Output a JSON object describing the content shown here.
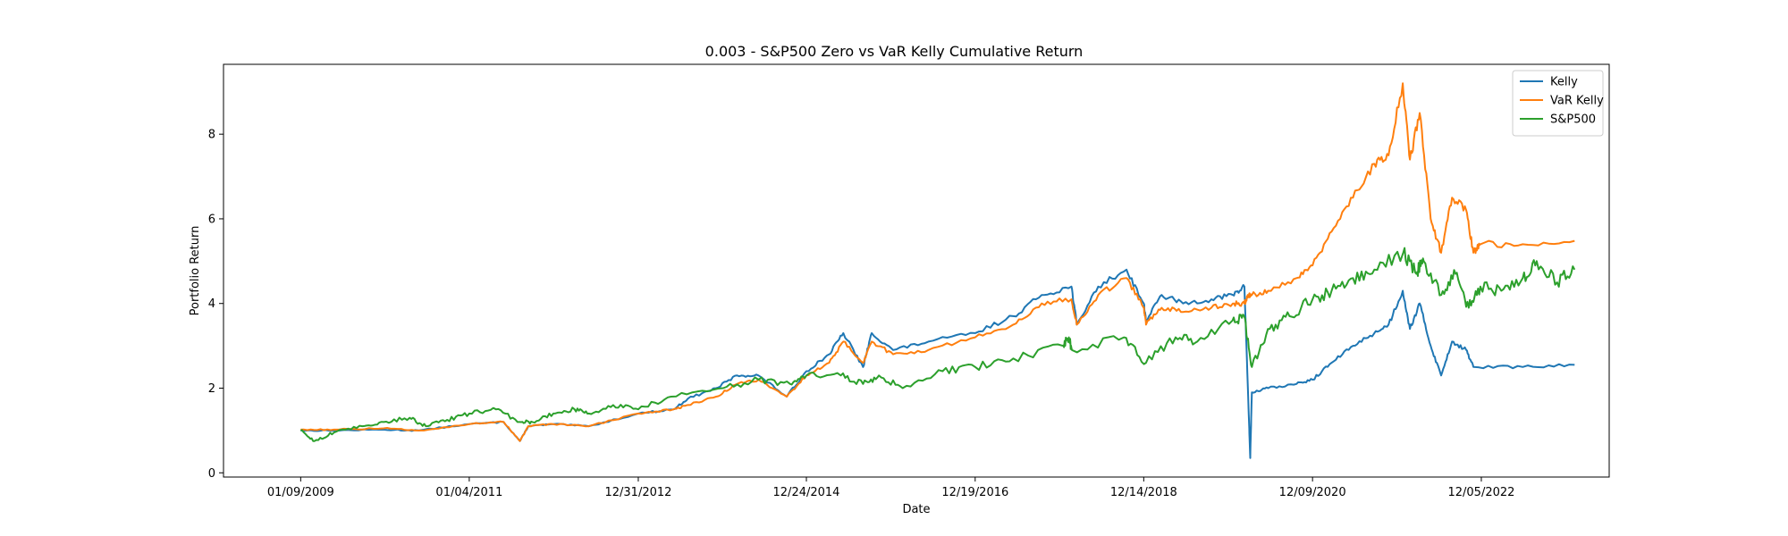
{
  "chart_data": {
    "type": "line",
    "title": "0.003 - S&P500 Zero vs VaR Kelly Cumulative Return",
    "xlabel": "Date",
    "ylabel": "Portfolio Return",
    "x_tick_labels": [
      "01/09/2009",
      "01/04/2011",
      "12/31/2012",
      "12/24/2014",
      "12/19/2016",
      "12/14/2018",
      "12/09/2020",
      "12/05/2022"
    ],
    "x_ticks": [
      "2009-01-09",
      "2011-01-04",
      "2012-12-31",
      "2014-12-24",
      "2016-12-19",
      "2018-12-14",
      "2020-12-09",
      "2022-12-05"
    ],
    "y_ticks": [
      0,
      2,
      4,
      6,
      8
    ],
    "xlim": [
      "2008-02-12",
      "2024-06-07"
    ],
    "ylim": [
      -0.1,
      9.65
    ],
    "grid": false,
    "legend_position": "top-right",
    "series": [
      {
        "name": "Kelly",
        "color": "#1f77b4",
        "points": [
          [
            "2009-01-09",
            1.0
          ],
          [
            "2009-06-01",
            1.0
          ],
          [
            "2010-01-01",
            1.02
          ],
          [
            "2010-06-01",
            1.0
          ],
          [
            "2011-01-04",
            1.15
          ],
          [
            "2011-06-01",
            1.2
          ],
          [
            "2011-08-10",
            0.75
          ],
          [
            "2011-09-15",
            1.1
          ],
          [
            "2012-01-01",
            1.15
          ],
          [
            "2012-06-01",
            1.1
          ],
          [
            "2012-12-31",
            1.4
          ],
          [
            "2013-06-01",
            1.5
          ],
          [
            "2013-08-01",
            1.75
          ],
          [
            "2013-12-01",
            2.0
          ],
          [
            "2014-03-01",
            2.3
          ],
          [
            "2014-06-01",
            2.3
          ],
          [
            "2014-10-01",
            1.8
          ],
          [
            "2014-12-24",
            2.4
          ],
          [
            "2015-04-01",
            2.8
          ],
          [
            "2015-06-01",
            3.3
          ],
          [
            "2015-08-25",
            2.5
          ],
          [
            "2015-10-01",
            3.3
          ],
          [
            "2016-01-01",
            2.9
          ],
          [
            "2016-06-01",
            3.1
          ],
          [
            "2016-12-19",
            3.3
          ],
          [
            "2017-06-01",
            3.7
          ],
          [
            "2017-10-01",
            4.2
          ],
          [
            "2018-02-06",
            4.4
          ],
          [
            "2018-03-01",
            3.5
          ],
          [
            "2018-06-01",
            4.4
          ],
          [
            "2018-10-01",
            4.8
          ],
          [
            "2018-12-14",
            4.0
          ],
          [
            "2018-12-24",
            3.6
          ],
          [
            "2019-03-01",
            4.2
          ],
          [
            "2019-06-01",
            4.0
          ],
          [
            "2019-10-01",
            4.1
          ],
          [
            "2020-01-01",
            4.2
          ],
          [
            "2020-02-20",
            4.4
          ],
          [
            "2020-03-09",
            1.5
          ],
          [
            "2020-03-16",
            0.35
          ],
          [
            "2020-03-23",
            1.9
          ],
          [
            "2020-06-01",
            2.0
          ],
          [
            "2020-10-01",
            2.1
          ],
          [
            "2020-12-09",
            2.2
          ],
          [
            "2021-03-01",
            2.6
          ],
          [
            "2021-06-01",
            3.0
          ],
          [
            "2021-09-01",
            3.3
          ],
          [
            "2021-11-01",
            3.5
          ],
          [
            "2022-01-01",
            4.3
          ],
          [
            "2022-02-01",
            3.4
          ],
          [
            "2022-03-15",
            4.0
          ],
          [
            "2022-05-01",
            3.0
          ],
          [
            "2022-06-15",
            2.3
          ],
          [
            "2022-08-01",
            3.1
          ],
          [
            "2022-10-01",
            2.9
          ],
          [
            "2022-11-01",
            2.5
          ],
          [
            "2023-06-01",
            2.5
          ],
          [
            "2024-01-10",
            2.55
          ]
        ]
      },
      {
        "name": "VaR Kelly",
        "color": "#ff7f0e",
        "points": [
          [
            "2009-01-09",
            1.02
          ],
          [
            "2009-06-01",
            1.02
          ],
          [
            "2010-01-01",
            1.05
          ],
          [
            "2010-06-01",
            1.0
          ],
          [
            "2011-01-04",
            1.15
          ],
          [
            "2011-06-01",
            1.2
          ],
          [
            "2011-08-10",
            0.75
          ],
          [
            "2011-09-15",
            1.1
          ],
          [
            "2012-01-01",
            1.15
          ],
          [
            "2012-06-01",
            1.1
          ],
          [
            "2012-12-31",
            1.4
          ],
          [
            "2013-06-01",
            1.5
          ],
          [
            "2013-08-01",
            1.6
          ],
          [
            "2013-12-01",
            1.8
          ],
          [
            "2014-03-01",
            2.1
          ],
          [
            "2014-06-01",
            2.2
          ],
          [
            "2014-10-01",
            1.8
          ],
          [
            "2014-12-24",
            2.3
          ],
          [
            "2015-04-01",
            2.6
          ],
          [
            "2015-06-01",
            3.1
          ],
          [
            "2015-08-25",
            2.6
          ],
          [
            "2015-10-01",
            3.1
          ],
          [
            "2016-01-01",
            2.8
          ],
          [
            "2016-06-01",
            2.9
          ],
          [
            "2016-12-19",
            3.2
          ],
          [
            "2017-06-01",
            3.5
          ],
          [
            "2017-10-01",
            4.0
          ],
          [
            "2018-02-06",
            4.1
          ],
          [
            "2018-03-01",
            3.5
          ],
          [
            "2018-06-01",
            4.2
          ],
          [
            "2018-10-01",
            4.6
          ],
          [
            "2018-12-14",
            3.9
          ],
          [
            "2018-12-24",
            3.5
          ],
          [
            "2019-03-01",
            3.9
          ],
          [
            "2019-06-01",
            3.8
          ],
          [
            "2019-10-01",
            3.9
          ],
          [
            "2020-01-01",
            4.0
          ],
          [
            "2020-02-20",
            4.0
          ],
          [
            "2020-03-09",
            4.2
          ],
          [
            "2020-03-23",
            4.2
          ],
          [
            "2020-06-01",
            4.3
          ],
          [
            "2020-10-01",
            4.6
          ],
          [
            "2020-12-09",
            4.9
          ],
          [
            "2021-03-01",
            5.7
          ],
          [
            "2021-06-01",
            6.5
          ],
          [
            "2021-09-01",
            7.3
          ],
          [
            "2021-11-01",
            7.5
          ],
          [
            "2022-01-01",
            9.2
          ],
          [
            "2022-02-01",
            7.4
          ],
          [
            "2022-03-15",
            8.5
          ],
          [
            "2022-05-01",
            6.0
          ],
          [
            "2022-06-15",
            5.2
          ],
          [
            "2022-08-01",
            6.5
          ],
          [
            "2022-10-01",
            6.2
          ],
          [
            "2022-11-01",
            5.2
          ],
          [
            "2022-12-01",
            5.4
          ],
          [
            "2023-06-01",
            5.4
          ],
          [
            "2024-01-10",
            5.48
          ]
        ]
      },
      {
        "name": "S&P500",
        "color": "#2ca02c",
        "points": [
          [
            "2009-01-09",
            1.0
          ],
          [
            "2009-03-09",
            0.75
          ],
          [
            "2009-06-01",
            0.95
          ],
          [
            "2009-10-01",
            1.1
          ],
          [
            "2010-01-01",
            1.2
          ],
          [
            "2010-04-23",
            1.3
          ],
          [
            "2010-07-01",
            1.1
          ],
          [
            "2010-10-01",
            1.25
          ],
          [
            "2011-01-04",
            1.4
          ],
          [
            "2011-04-29",
            1.5
          ],
          [
            "2011-08-10",
            1.2
          ],
          [
            "2011-10-03",
            1.2
          ],
          [
            "2012-01-01",
            1.4
          ],
          [
            "2012-04-01",
            1.5
          ],
          [
            "2012-06-01",
            1.4
          ],
          [
            "2012-09-14",
            1.6
          ],
          [
            "2012-12-31",
            1.5
          ],
          [
            "2013-05-21",
            1.8
          ],
          [
            "2013-12-31",
            2.0
          ],
          [
            "2014-06-01",
            2.2
          ],
          [
            "2014-10-15",
            2.1
          ],
          [
            "2014-12-24",
            2.3
          ],
          [
            "2015-05-21",
            2.3
          ],
          [
            "2015-08-25",
            2.1
          ],
          [
            "2015-11-01",
            2.3
          ],
          [
            "2016-02-11",
            2.0
          ],
          [
            "2016-08-01",
            2.4
          ],
          [
            "2016-12-19",
            2.5
          ],
          [
            "2017-06-01",
            2.7
          ],
          [
            "2017-12-31",
            3.0
          ],
          [
            "2018-01-26",
            3.2
          ],
          [
            "2018-02-08",
            2.9
          ],
          [
            "2018-09-20",
            3.2
          ],
          [
            "2018-12-24",
            2.6
          ],
          [
            "2019-04-30",
            3.2
          ],
          [
            "2019-08-01",
            3.1
          ],
          [
            "2019-12-31",
            3.6
          ],
          [
            "2020-02-19",
            3.7
          ],
          [
            "2020-03-23",
            2.5
          ],
          [
            "2020-06-08",
            3.4
          ],
          [
            "2020-09-01",
            3.7
          ],
          [
            "2020-12-09",
            4.1
          ],
          [
            "2021-03-01",
            4.3
          ],
          [
            "2021-06-01",
            4.6
          ],
          [
            "2021-09-01",
            4.8
          ],
          [
            "2022-01-03",
            5.2
          ],
          [
            "2022-03-01",
            4.7
          ],
          [
            "2022-04-01",
            5.0
          ],
          [
            "2022-06-16",
            4.2
          ],
          [
            "2022-08-16",
            4.7
          ],
          [
            "2022-10-12",
            3.9
          ],
          [
            "2022-12-01",
            4.4
          ],
          [
            "2023-03-01",
            4.3
          ],
          [
            "2023-06-01",
            4.6
          ],
          [
            "2023-07-31",
            5.0
          ],
          [
            "2023-10-27",
            4.5
          ],
          [
            "2024-01-10",
            4.8
          ]
        ]
      }
    ]
  }
}
